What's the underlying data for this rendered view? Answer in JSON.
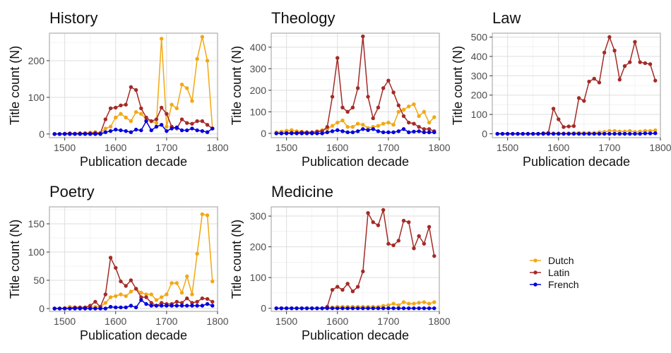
{
  "chart_data": [
    {
      "type": "line",
      "title": "History",
      "xlabel": "Publication decade",
      "ylabel": "Title count (N)",
      "xlim": [
        1470,
        1800
      ],
      "ylim": [
        -10,
        275
      ],
      "xticks": [
        1500,
        1600,
        1700,
        1800
      ],
      "xtick_labels": [
        "1500",
        "1600",
        "1700",
        "1800"
      ],
      "yticks": [
        0,
        100,
        200
      ],
      "x": [
        1480,
        1490,
        1500,
        1510,
        1520,
        1530,
        1540,
        1550,
        1560,
        1570,
        1580,
        1590,
        1600,
        1610,
        1620,
        1630,
        1640,
        1650,
        1660,
        1670,
        1680,
        1690,
        1700,
        1710,
        1720,
        1730,
        1740,
        1750,
        1760,
        1770,
        1780,
        1790
      ],
      "series": [
        {
          "name": "Dutch",
          "values": [
            0,
            0,
            0,
            1,
            1,
            2,
            2,
            4,
            5,
            3,
            15,
            20,
            45,
            55,
            45,
            35,
            60,
            55,
            40,
            35,
            30,
            260,
            20,
            80,
            70,
            135,
            125,
            90,
            205,
            265,
            200,
            15
          ]
        },
        {
          "name": "Latin",
          "values": [
            0,
            0,
            1,
            2,
            1,
            2,
            2,
            2,
            3,
            2,
            40,
            70,
            72,
            78,
            80,
            128,
            120,
            70,
            45,
            35,
            40,
            72,
            55,
            20,
            15,
            40,
            30,
            28,
            35,
            35,
            25,
            15
          ]
        },
        {
          "name": "French",
          "values": [
            0,
            0,
            0,
            0,
            0,
            0,
            0,
            0,
            0,
            0,
            5,
            8,
            12,
            10,
            8,
            5,
            12,
            10,
            35,
            10,
            20,
            25,
            8,
            15,
            18,
            10,
            10,
            15,
            10,
            8,
            5,
            15
          ]
        }
      ]
    },
    {
      "type": "line",
      "title": "Theology",
      "xlabel": "Publication decade",
      "ylabel": "Title count (N)",
      "xlim": [
        1470,
        1800
      ],
      "ylim": [
        -20,
        465
      ],
      "xticks": [
        1500,
        1600,
        1700,
        1800
      ],
      "xtick_labels": [
        "1500",
        "1600",
        "1700",
        "1800"
      ],
      "yticks": [
        0,
        100,
        200,
        300,
        400
      ],
      "x": [
        1480,
        1490,
        1500,
        1510,
        1520,
        1530,
        1540,
        1550,
        1560,
        1570,
        1580,
        1590,
        1600,
        1610,
        1620,
        1630,
        1640,
        1650,
        1660,
        1670,
        1680,
        1690,
        1700,
        1710,
        1720,
        1730,
        1740,
        1750,
        1760,
        1770,
        1780,
        1790
      ],
      "series": [
        {
          "name": "Dutch",
          "values": [
            5,
            8,
            12,
            15,
            10,
            8,
            5,
            5,
            10,
            15,
            20,
            35,
            50,
            60,
            30,
            30,
            45,
            40,
            25,
            30,
            35,
            45,
            50,
            40,
            100,
            110,
            125,
            135,
            80,
            100,
            50,
            75
          ]
        },
        {
          "name": "Latin",
          "values": [
            0,
            0,
            2,
            3,
            3,
            5,
            5,
            5,
            8,
            10,
            30,
            170,
            350,
            120,
            100,
            120,
            210,
            450,
            170,
            70,
            120,
            210,
            245,
            190,
            130,
            80,
            50,
            45,
            30,
            20,
            20,
            10
          ]
        },
        {
          "name": "French",
          "values": [
            0,
            0,
            0,
            0,
            0,
            0,
            0,
            0,
            0,
            0,
            5,
            10,
            15,
            10,
            5,
            5,
            10,
            20,
            15,
            20,
            10,
            5,
            5,
            5,
            10,
            20,
            5,
            8,
            10,
            5,
            5,
            5
          ]
        }
      ]
    },
    {
      "type": "line",
      "title": "Law",
      "xlabel": "Publication decade",
      "ylabel": "Title count (N)",
      "xlim": [
        1470,
        1800
      ],
      "ylim": [
        -20,
        520
      ],
      "xticks": [
        1500,
        1600,
        1700,
        1800
      ],
      "xtick_labels": [
        "1500",
        "1600",
        "1700",
        "1800"
      ],
      "yticks": [
        0,
        100,
        200,
        300,
        400,
        500
      ],
      "x": [
        1480,
        1490,
        1500,
        1510,
        1520,
        1530,
        1540,
        1550,
        1560,
        1570,
        1580,
        1590,
        1600,
        1610,
        1620,
        1630,
        1640,
        1650,
        1660,
        1670,
        1680,
        1690,
        1700,
        1710,
        1720,
        1730,
        1740,
        1750,
        1760,
        1770,
        1780,
        1790
      ],
      "series": [
        {
          "name": "Dutch",
          "values": [
            0,
            0,
            0,
            0,
            0,
            0,
            0,
            0,
            0,
            0,
            2,
            3,
            3,
            3,
            3,
            5,
            5,
            5,
            5,
            5,
            8,
            10,
            15,
            15,
            12,
            12,
            15,
            10,
            12,
            15,
            15,
            18
          ]
        },
        {
          "name": "Latin",
          "values": [
            0,
            0,
            0,
            0,
            0,
            0,
            0,
            0,
            0,
            3,
            5,
            130,
            75,
            35,
            38,
            40,
            185,
            170,
            270,
            285,
            265,
            420,
            500,
            430,
            280,
            350,
            370,
            475,
            370,
            365,
            360,
            275
          ]
        },
        {
          "name": "French",
          "values": [
            0,
            0,
            0,
            0,
            0,
            0,
            0,
            0,
            0,
            0,
            0,
            0,
            0,
            0,
            0,
            0,
            0,
            0,
            0,
            0,
            0,
            0,
            0,
            0,
            0,
            0,
            0,
            0,
            0,
            2,
            2,
            3
          ]
        }
      ]
    },
    {
      "type": "line",
      "title": "Poetry",
      "xlabel": "Publication decade",
      "ylabel": "Title count (N)",
      "xlim": [
        1470,
        1800
      ],
      "ylim": [
        -5,
        180
      ],
      "xticks": [
        1500,
        1600,
        1700,
        1800
      ],
      "xtick_labels": [
        "1500",
        "1600",
        "1700",
        "1800"
      ],
      "yticks": [
        0,
        50,
        100,
        150
      ],
      "x": [
        1480,
        1490,
        1500,
        1510,
        1520,
        1530,
        1540,
        1550,
        1560,
        1570,
        1580,
        1590,
        1600,
        1610,
        1620,
        1630,
        1640,
        1650,
        1660,
        1670,
        1680,
        1690,
        1700,
        1710,
        1720,
        1730,
        1740,
        1750,
        1760,
        1770,
        1780,
        1790
      ],
      "series": [
        {
          "name": "Dutch",
          "values": [
            0,
            0,
            1,
            3,
            2,
            2,
            2,
            2,
            3,
            3,
            10,
            20,
            22,
            25,
            22,
            30,
            35,
            28,
            25,
            25,
            15,
            20,
            25,
            45,
            45,
            28,
            57,
            25,
            97,
            167,
            165,
            48
          ]
        },
        {
          "name": "Latin",
          "values": [
            0,
            0,
            0,
            0,
            2,
            2,
            2,
            5,
            12,
            3,
            25,
            90,
            72,
            48,
            40,
            50,
            35,
            20,
            20,
            10,
            5,
            10,
            8,
            8,
            12,
            10,
            18,
            10,
            12,
            18,
            17,
            12
          ]
        },
        {
          "name": "French",
          "values": [
            0,
            0,
            0,
            0,
            0,
            0,
            0,
            0,
            0,
            0,
            0,
            3,
            2,
            2,
            2,
            5,
            2,
            15,
            8,
            5,
            5,
            5,
            5,
            5,
            5,
            5,
            5,
            5,
            5,
            5,
            8,
            5
          ]
        }
      ]
    },
    {
      "type": "line",
      "title": "Medicine",
      "xlabel": "Publication decade",
      "ylabel": "Title count (N)",
      "xlim": [
        1470,
        1800
      ],
      "ylim": [
        -10,
        330
      ],
      "xticks": [
        1500,
        1600,
        1700,
        1800
      ],
      "xtick_labels": [
        "1500",
        "1600",
        "1700",
        "1800"
      ],
      "yticks": [
        0,
        100,
        200,
        300
      ],
      "x": [
        1480,
        1490,
        1500,
        1510,
        1520,
        1530,
        1540,
        1550,
        1560,
        1570,
        1580,
        1590,
        1600,
        1610,
        1620,
        1630,
        1640,
        1650,
        1660,
        1670,
        1680,
        1690,
        1700,
        1710,
        1720,
        1730,
        1740,
        1750,
        1760,
        1770,
        1780,
        1790
      ],
      "series": [
        {
          "name": "Dutch",
          "values": [
            0,
            0,
            0,
            0,
            0,
            0,
            0,
            0,
            0,
            0,
            2,
            3,
            5,
            5,
            5,
            5,
            5,
            5,
            5,
            5,
            5,
            8,
            10,
            15,
            10,
            20,
            15,
            15,
            18,
            20,
            15,
            20
          ]
        },
        {
          "name": "Latin",
          "values": [
            0,
            0,
            0,
            0,
            0,
            0,
            0,
            0,
            0,
            0,
            5,
            60,
            70,
            60,
            80,
            55,
            70,
            120,
            310,
            280,
            270,
            320,
            210,
            205,
            220,
            285,
            280,
            195,
            235,
            210,
            265,
            170
          ]
        },
        {
          "name": "French",
          "values": [
            0,
            0,
            0,
            0,
            0,
            0,
            0,
            0,
            0,
            0,
            0,
            0,
            0,
            0,
            0,
            0,
            0,
            0,
            0,
            0,
            0,
            0,
            0,
            0,
            0,
            0,
            0,
            0,
            0,
            0,
            0,
            0
          ]
        }
      ]
    }
  ],
  "legend": {
    "entries": [
      {
        "name": "Dutch",
        "color": "#f2a813"
      },
      {
        "name": "Latin",
        "color": "#a32b27"
      },
      {
        "name": "French",
        "color": "#0000e0"
      }
    ],
    "position": "right"
  }
}
